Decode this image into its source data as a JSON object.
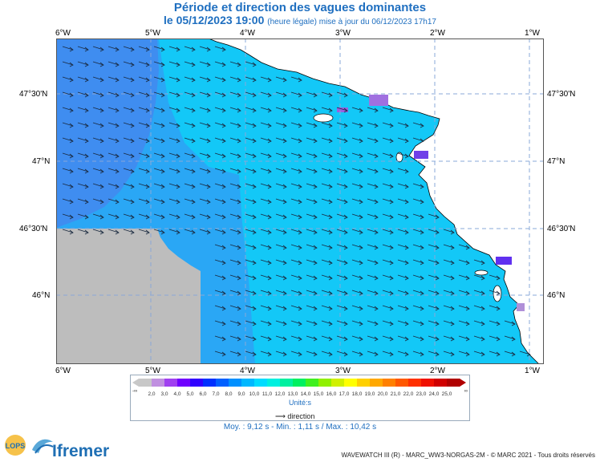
{
  "header": {
    "title": "Période et direction des vagues dominantes",
    "date_line": "le 05/12/2023 19:00",
    "date_note": "(heure légale) mise à jour du 06/12/2023 17h17"
  },
  "axes": {
    "lon_labels": [
      "6°W",
      "5°W",
      "4°W",
      "3°W",
      "2°W",
      "1°W"
    ],
    "lat_labels": [
      "47°30'N",
      "47°N",
      "46°30'N",
      "46°N"
    ]
  },
  "legend": {
    "ticks": [
      "2,0",
      "3,0",
      "4,0",
      "5,0",
      "6,0",
      "7,0",
      "8,0",
      "9,0",
      "10,0",
      "11,0",
      "12,0",
      "13,0",
      "14,0",
      "15,0",
      "16,0",
      "17,0",
      "18,0",
      "19,0",
      "20,0",
      "21,0",
      "22,0",
      "23,0",
      "24,0",
      "25,0"
    ],
    "low_end": "-∞",
    "high_end": "∞",
    "unit_label": "Unité:s",
    "direction_label": "direction",
    "colors": [
      "#c8c8c8",
      "#c090e0",
      "#a040f0",
      "#7000ff",
      "#3000ff",
      "#0030ff",
      "#0060ff",
      "#0090ff",
      "#00b8ff",
      "#00dcff",
      "#00f0e0",
      "#00f0a0",
      "#00f060",
      "#40f020",
      "#90f000",
      "#d0f000",
      "#ffff00",
      "#ffd000",
      "#ffa800",
      "#ff8000",
      "#ff5800",
      "#ff3000",
      "#f01000",
      "#d00000",
      "#b00000"
    ]
  },
  "stats": {
    "text": "Moy. : 9,12 s   -   Min. : 1,11 s / Max. : 10,42 s"
  },
  "credit": "WAVEWATCH III (R) - MARC_WW3-NORGAS-2M - © MARC 2021 - Tous droits réservés",
  "logos": {
    "lops": "LOPS",
    "ifremer": "Ifremer"
  },
  "map_colors": {
    "deep": "#3f8df0",
    "mid": "#2aa7f5",
    "coastal": "#13c8f7",
    "land": "#ffffff",
    "nodata": "#bdbdbd",
    "hotspot": "#8040e0"
  }
}
